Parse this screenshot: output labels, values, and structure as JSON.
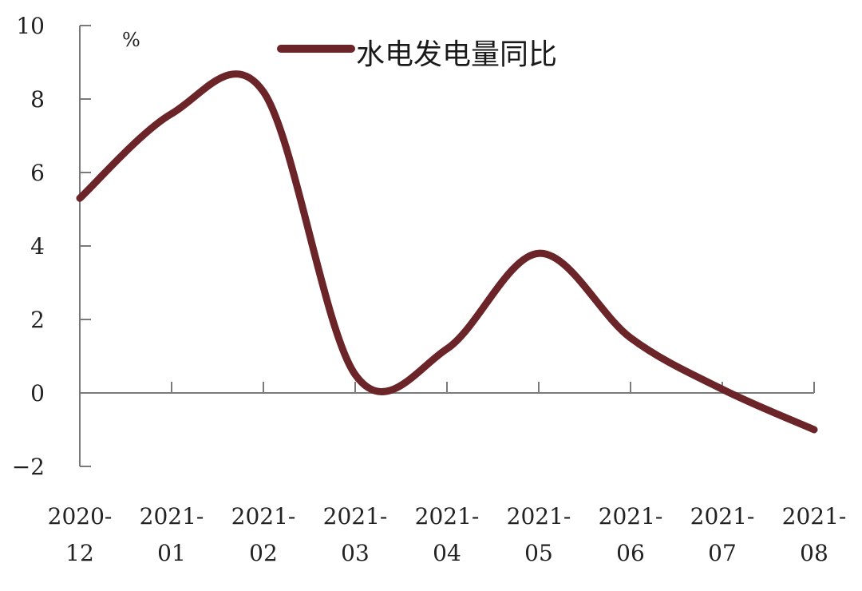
{
  "chart_data": {
    "type": "line",
    "title": "",
    "xlabel": "",
    "ylabel": "",
    "unit": "%",
    "categories": [
      "2020-12",
      "2021-01",
      "2021-02",
      "2021-03",
      "2021-04",
      "2021-05",
      "2021-06",
      "2021-07",
      "2021-08"
    ],
    "category_labels": [
      [
        "2020-",
        "12"
      ],
      [
        "2021-",
        "01"
      ],
      [
        "2021-",
        "02"
      ],
      [
        "2021-",
        "03"
      ],
      [
        "2021-",
        "04"
      ],
      [
        "2021-",
        "05"
      ],
      [
        "2021-",
        "06"
      ],
      [
        "2021-",
        "07"
      ],
      [
        "2021-",
        "08"
      ]
    ],
    "series": [
      {
        "name": "水电发电量同比",
        "color": "#6b2427",
        "values": [
          5.3,
          7.6,
          8.2,
          0.5,
          1.2,
          3.8,
          1.5,
          0.1,
          -1.0
        ]
      }
    ],
    "ylim": [
      -2,
      10
    ],
    "yticks": [
      -2,
      0,
      2,
      4,
      6,
      8,
      10
    ],
    "ytick_labels": [
      "−2",
      "0",
      "2",
      "4",
      "6",
      "8",
      "10"
    ],
    "grid": false,
    "legend_position": "top"
  }
}
